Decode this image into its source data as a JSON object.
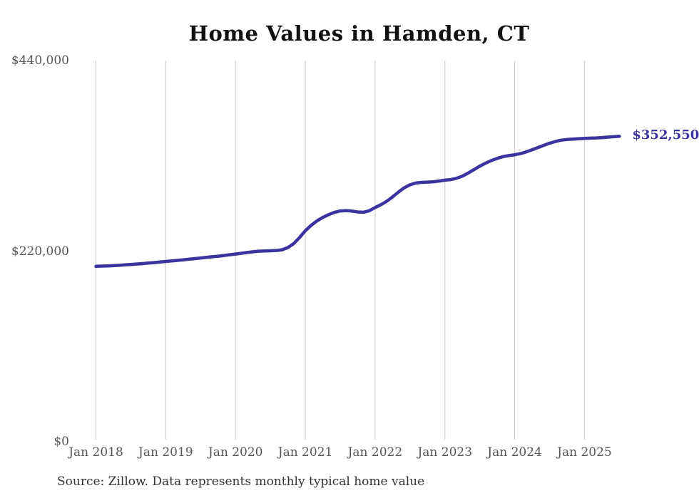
{
  "page": {
    "title": "Home Values in Hamden, CT",
    "source_note": "Source: Zillow. Data represents monthly typical home value"
  },
  "chart_data": {
    "type": "line",
    "title": "Home Values in Hamden, CT",
    "xlabel": "",
    "ylabel": "",
    "ylim": [
      0,
      440000
    ],
    "grid": "vertical-only",
    "legend": "none",
    "line_color": "#3a33a0",
    "gridline_color": "#c9c9c9",
    "tick_label_color": "#55575a",
    "end_label": "$352,550",
    "latest_value": 352550,
    "y_ticks": [
      {
        "value": 0,
        "label": "$0"
      },
      {
        "value": 220000,
        "label": "$220,000"
      },
      {
        "value": 440000,
        "label": "$440,000"
      }
    ],
    "x_tick_labels": [
      "Jan 2018",
      "Jan 2019",
      "Jan 2020",
      "Jan 2021",
      "Jan 2022",
      "Jan 2023",
      "Jan 2024",
      "Jan 2025"
    ],
    "x": [
      "2018-01",
      "2018-02",
      "2018-03",
      "2018-04",
      "2018-05",
      "2018-06",
      "2018-07",
      "2018-08",
      "2018-09",
      "2018-10",
      "2018-11",
      "2018-12",
      "2019-01",
      "2019-02",
      "2019-03",
      "2019-04",
      "2019-05",
      "2019-06",
      "2019-07",
      "2019-08",
      "2019-09",
      "2019-10",
      "2019-11",
      "2019-12",
      "2020-01",
      "2020-02",
      "2020-03",
      "2020-04",
      "2020-05",
      "2020-06",
      "2020-07",
      "2020-08",
      "2020-09",
      "2020-10",
      "2020-11",
      "2020-12",
      "2021-01",
      "2021-02",
      "2021-03",
      "2021-04",
      "2021-05",
      "2021-06",
      "2021-07",
      "2021-08",
      "2021-09",
      "2021-10",
      "2021-11",
      "2021-12",
      "2022-01",
      "2022-02",
      "2022-03",
      "2022-04",
      "2022-05",
      "2022-06",
      "2022-07",
      "2022-08",
      "2022-09",
      "2022-10",
      "2022-11",
      "2022-12",
      "2023-01",
      "2023-02",
      "2023-03",
      "2023-04",
      "2023-05",
      "2023-06",
      "2023-07",
      "2023-08",
      "2023-09",
      "2023-10",
      "2023-11",
      "2023-12",
      "2024-01",
      "2024-02",
      "2024-03",
      "2024-04",
      "2024-05",
      "2024-06",
      "2024-07",
      "2024-08",
      "2024-09",
      "2024-10",
      "2024-11",
      "2024-12",
      "2025-01",
      "2025-02",
      "2025-03",
      "2025-04",
      "2025-05",
      "2025-06",
      "2025-07"
    ],
    "values": [
      202500,
      202700,
      202900,
      203200,
      203600,
      204100,
      204600,
      205100,
      205600,
      206200,
      206800,
      207400,
      208100,
      208700,
      209300,
      210000,
      210700,
      211400,
      212100,
      212800,
      213500,
      214200,
      215000,
      215800,
      216600,
      217500,
      218400,
      219300,
      219900,
      220200,
      220400,
      220700,
      221600,
      224100,
      228600,
      235600,
      243600,
      249800,
      254900,
      258900,
      262100,
      264700,
      266400,
      266800,
      266200,
      265200,
      264900,
      266600,
      270300,
      273600,
      277600,
      282600,
      288100,
      293100,
      296600,
      298600,
      299400,
      299700,
      300100,
      300900,
      301900,
      302600,
      304100,
      306600,
      310100,
      314100,
      318100,
      321600,
      324600,
      327100,
      329100,
      330300,
      331300,
      332600,
      334600,
      337100,
      339600,
      342100,
      344600,
      346600,
      348100,
      348900,
      349400,
      349800,
      350100,
      350400,
      350700,
      351100,
      351600,
      352100,
      352550
    ]
  }
}
